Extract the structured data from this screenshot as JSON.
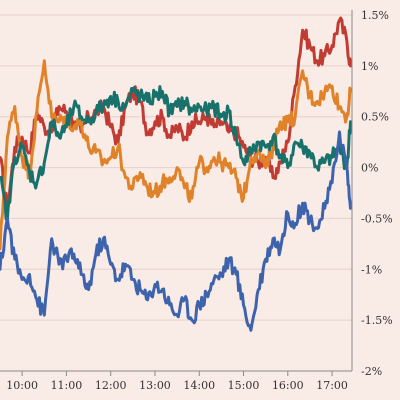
{
  "colors": {
    "background": "#f9ebe6",
    "grid": "#e8d2cb",
    "axis": "#8a8a8a"
  },
  "chart_data": {
    "type": "line",
    "title": "",
    "xlabel": "",
    "ylabel": "",
    "x_range": [
      "09:30",
      "17:30"
    ],
    "xlim_hours": [
      9.5,
      17.45
    ],
    "ylim": [
      -2,
      1.5
    ],
    "y_ticks": [
      1.5,
      1,
      0.5,
      0,
      -0.5,
      -1,
      -1.5,
      -2
    ],
    "y_tick_labels": [
      "1.5%",
      "1%",
      "0.5%",
      "0%",
      "-0.5%",
      "-1%",
      "-1.5%",
      "-2%"
    ],
    "x_ticks": [
      "10:00",
      "11:00",
      "12:00",
      "13:00",
      "14:00",
      "15:00",
      "16:00",
      "17:00"
    ],
    "grid": "horizontal",
    "y_axis_side": "right",
    "series": [
      {
        "color": "#c23b32",
        "points": [
          [
            "09:30",
            0.1
          ],
          [
            "09:40",
            -0.4
          ],
          [
            "09:50",
            0.2
          ],
          [
            "10:00",
            0.3
          ],
          [
            "10:10",
            0.15
          ],
          [
            "10:20",
            0.55
          ],
          [
            "10:30",
            0.4
          ],
          [
            "10:40",
            0.35
          ],
          [
            "10:50",
            0.6
          ],
          [
            "11:00",
            0.55
          ],
          [
            "11:10",
            0.45
          ],
          [
            "11:20",
            0.35
          ],
          [
            "11:30",
            0.5
          ],
          [
            "11:40",
            0.55
          ],
          [
            "11:50",
            0.6
          ],
          [
            "12:00",
            0.4
          ],
          [
            "12:10",
            0.25
          ],
          [
            "12:20",
            0.6
          ],
          [
            "12:30",
            0.75
          ],
          [
            "12:40",
            0.65
          ],
          [
            "12:50",
            0.35
          ],
          [
            "13:00",
            0.45
          ],
          [
            "13:10",
            0.5
          ],
          [
            "13:20",
            0.3
          ],
          [
            "13:30",
            0.4
          ],
          [
            "13:40",
            0.3
          ],
          [
            "13:50",
            0.45
          ],
          [
            "14:00",
            0.45
          ],
          [
            "14:10",
            0.5
          ],
          [
            "14:20",
            0.4
          ],
          [
            "14:30",
            0.45
          ],
          [
            "14:40",
            0.35
          ],
          [
            "14:50",
            0.35
          ],
          [
            "15:00",
            0.2
          ],
          [
            "15:10",
            0.1
          ],
          [
            "15:20",
            0.05
          ],
          [
            "15:30",
            0.1
          ],
          [
            "15:40",
            -0.1
          ],
          [
            "15:50",
            0.05
          ],
          [
            "16:00",
            0.25
          ],
          [
            "16:10",
            0.8
          ],
          [
            "16:20",
            1.35
          ],
          [
            "16:30",
            1.2
          ],
          [
            "16:40",
            1.05
          ],
          [
            "16:50",
            1.1
          ],
          [
            "17:00",
            1.2
          ],
          [
            "17:10",
            1.45
          ],
          [
            "17:20",
            1.25
          ],
          [
            "17:25",
            1.0
          ]
        ]
      },
      {
        "color": "#e0822a",
        "points": [
          [
            "09:30",
            -0.8
          ],
          [
            "09:40",
            0.3
          ],
          [
            "09:50",
            0.6
          ],
          [
            "10:00",
            0.1
          ],
          [
            "10:10",
            -0.05
          ],
          [
            "10:20",
            0.55
          ],
          [
            "10:30",
            1.05
          ],
          [
            "10:40",
            0.5
          ],
          [
            "10:50",
            0.45
          ],
          [
            "11:00",
            0.5
          ],
          [
            "11:10",
            0.4
          ],
          [
            "11:20",
            0.45
          ],
          [
            "11:30",
            0.2
          ],
          [
            "11:40",
            0.15
          ],
          [
            "11:50",
            0.05
          ],
          [
            "12:00",
            0.1
          ],
          [
            "12:10",
            0.2
          ],
          [
            "12:20",
            -0.1
          ],
          [
            "12:30",
            -0.2
          ],
          [
            "12:40",
            -0.05
          ],
          [
            "12:50",
            -0.2
          ],
          [
            "13:00",
            -0.25
          ],
          [
            "13:10",
            -0.15
          ],
          [
            "13:20",
            -0.1
          ],
          [
            "13:30",
            0.0
          ],
          [
            "13:40",
            -0.2
          ],
          [
            "13:50",
            -0.3
          ],
          [
            "14:00",
            0.05
          ],
          [
            "14:10",
            0.0
          ],
          [
            "14:20",
            0.1
          ],
          [
            "14:30",
            0.05
          ],
          [
            "14:40",
            0.0
          ],
          [
            "14:50",
            -0.1
          ],
          [
            "15:00",
            -0.3
          ],
          [
            "15:10",
            0.1
          ],
          [
            "15:20",
            0.15
          ],
          [
            "15:30",
            0.0
          ],
          [
            "15:40",
            0.2
          ],
          [
            "15:50",
            0.45
          ],
          [
            "16:00",
            0.45
          ],
          [
            "16:10",
            0.5
          ],
          [
            "16:20",
            0.95
          ],
          [
            "16:30",
            0.7
          ],
          [
            "16:40",
            0.65
          ],
          [
            "16:50",
            0.75
          ],
          [
            "17:00",
            0.8
          ],
          [
            "17:10",
            0.6
          ],
          [
            "17:20",
            0.5
          ],
          [
            "17:25",
            0.75
          ]
        ]
      },
      {
        "color": "#18716b",
        "points": [
          [
            "09:30",
            -0.1
          ],
          [
            "09:40",
            -0.5
          ],
          [
            "09:50",
            0.1
          ],
          [
            "10:00",
            0.2
          ],
          [
            "10:10",
            -0.05
          ],
          [
            "10:20",
            -0.15
          ],
          [
            "10:30",
            0.05
          ],
          [
            "10:40",
            0.45
          ],
          [
            "10:50",
            0.3
          ],
          [
            "11:00",
            0.4
          ],
          [
            "11:10",
            0.6
          ],
          [
            "11:20",
            0.5
          ],
          [
            "11:30",
            0.45
          ],
          [
            "11:40",
            0.55
          ],
          [
            "11:50",
            0.6
          ],
          [
            "12:00",
            0.7
          ],
          [
            "12:10",
            0.65
          ],
          [
            "12:20",
            0.6
          ],
          [
            "12:30",
            0.75
          ],
          [
            "12:40",
            0.7
          ],
          [
            "12:50",
            0.65
          ],
          [
            "13:00",
            0.7
          ],
          [
            "13:10",
            0.75
          ],
          [
            "13:20",
            0.55
          ],
          [
            "13:30",
            0.6
          ],
          [
            "13:40",
            0.65
          ],
          [
            "13:50",
            0.55
          ],
          [
            "14:00",
            0.6
          ],
          [
            "14:10",
            0.55
          ],
          [
            "14:20",
            0.6
          ],
          [
            "14:30",
            0.5
          ],
          [
            "14:40",
            0.55
          ],
          [
            "14:50",
            0.3
          ],
          [
            "15:00",
            0.05
          ],
          [
            "15:10",
            0.15
          ],
          [
            "15:20",
            0.25
          ],
          [
            "15:30",
            0.2
          ],
          [
            "15:40",
            0.3
          ],
          [
            "15:50",
            0.1
          ],
          [
            "16:00",
            0.0
          ],
          [
            "16:10",
            0.25
          ],
          [
            "16:20",
            0.2
          ],
          [
            "16:30",
            0.15
          ],
          [
            "16:40",
            0.0
          ],
          [
            "16:50",
            0.05
          ],
          [
            "17:00",
            0.1
          ],
          [
            "17:10",
            0.2
          ],
          [
            "17:20",
            0.0
          ],
          [
            "17:25",
            0.45
          ]
        ]
      },
      {
        "color": "#3e63ad",
        "points": [
          [
            "09:30",
            -1.0
          ],
          [
            "09:40",
            -0.5
          ],
          [
            "09:50",
            -0.9
          ],
          [
            "10:00",
            -1.1
          ],
          [
            "10:10",
            -1.05
          ],
          [
            "10:20",
            -1.3
          ],
          [
            "10:30",
            -1.45
          ],
          [
            "10:40",
            -0.7
          ],
          [
            "10:50",
            -0.95
          ],
          [
            "11:00",
            -0.9
          ],
          [
            "11:10",
            -0.85
          ],
          [
            "11:20",
            -1.05
          ],
          [
            "11:30",
            -1.2
          ],
          [
            "11:40",
            -0.85
          ],
          [
            "11:50",
            -0.7
          ],
          [
            "12:00",
            -0.95
          ],
          [
            "12:10",
            -1.1
          ],
          [
            "12:20",
            -0.95
          ],
          [
            "12:30",
            -1.1
          ],
          [
            "12:40",
            -1.2
          ],
          [
            "12:50",
            -1.3
          ],
          [
            "13:00",
            -1.15
          ],
          [
            "13:10",
            -1.2
          ],
          [
            "13:20",
            -1.35
          ],
          [
            "13:30",
            -1.45
          ],
          [
            "13:40",
            -1.3
          ],
          [
            "13:50",
            -1.5
          ],
          [
            "14:00",
            -1.35
          ],
          [
            "14:10",
            -1.25
          ],
          [
            "14:20",
            -1.1
          ],
          [
            "14:30",
            -1.05
          ],
          [
            "14:40",
            -0.9
          ],
          [
            "14:50",
            -1.05
          ],
          [
            "15:00",
            -1.35
          ],
          [
            "15:10",
            -1.6
          ],
          [
            "15:20",
            -1.2
          ],
          [
            "15:30",
            -0.9
          ],
          [
            "15:40",
            -0.7
          ],
          [
            "15:50",
            -0.8
          ],
          [
            "16:00",
            -0.45
          ],
          [
            "16:10",
            -0.55
          ],
          [
            "16:20",
            -0.35
          ],
          [
            "16:30",
            -0.5
          ],
          [
            "16:40",
            -0.6
          ],
          [
            "16:50",
            -0.4
          ],
          [
            "17:00",
            -0.15
          ],
          [
            "17:10",
            0.35
          ],
          [
            "17:20",
            0.0
          ],
          [
            "17:25",
            -0.4
          ]
        ]
      }
    ]
  }
}
